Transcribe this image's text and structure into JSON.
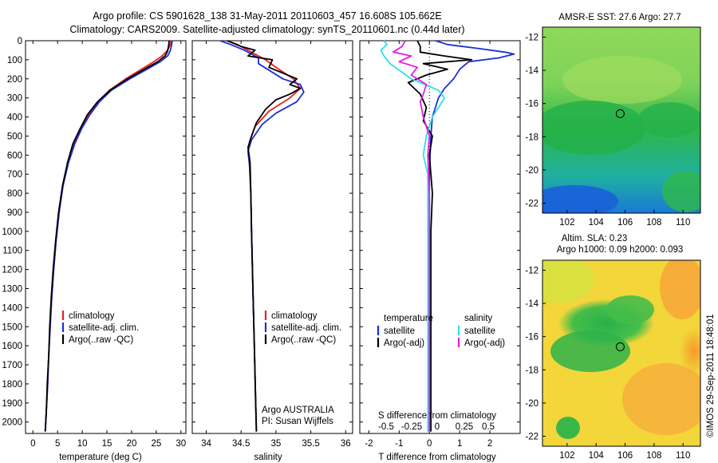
{
  "header": {
    "title_line1": "Argo profile: CS 5901628_138 31-May-2011 20110603_457 16.608S 105.662E",
    "title_line2": "Climatology: CARS2009. Satellite-adjusted climatology: synTS_20110601.nc (0.44d later)"
  },
  "colors": {
    "climatology": "#e8201c",
    "satellite": "#1a2fd6",
    "argo": "#000000",
    "sat_salinity": "#2de0ec",
    "argo_salinity": "#e020e0"
  },
  "depth_axis": {
    "ylim": [
      0,
      2060
    ],
    "ticks": [
      0,
      100,
      200,
      300,
      400,
      500,
      600,
      700,
      800,
      900,
      1000,
      1100,
      1200,
      1300,
      1400,
      1500,
      1600,
      1700,
      1800,
      1900,
      2000
    ]
  },
  "chart_data": [
    {
      "type": "line",
      "xlabel": "temperature (deg C)",
      "xlim": [
        -1.5,
        31
      ],
      "xticks": [
        0,
        5,
        10,
        15,
        20,
        25,
        30
      ],
      "legend": [
        "climatology",
        "satellite-adj. clim.",
        "Argo(..raw -QC)"
      ],
      "series": [
        {
          "name": "climatology",
          "color": "#e8201c",
          "points": [
            [
              28.0,
              0
            ],
            [
              27.8,
              25
            ],
            [
              27.1,
              55
            ],
            [
              26.2,
              80
            ],
            [
              24.5,
              110
            ],
            [
              22.0,
              150
            ],
            [
              18.8,
              200
            ],
            [
              15.5,
              260
            ],
            [
              13.2,
              320
            ],
            [
              11.3,
              390
            ],
            [
              9.8,
              460
            ],
            [
              8.4,
              540
            ],
            [
              7.1,
              640
            ],
            [
              6.1,
              760
            ],
            [
              5.3,
              900
            ],
            [
              4.7,
              1050
            ],
            [
              4.2,
              1200
            ],
            [
              3.8,
              1350
            ],
            [
              3.5,
              1500
            ],
            [
              3.2,
              1650
            ],
            [
              3.0,
              1800
            ],
            [
              2.7,
              1950
            ],
            [
              2.5,
              2050
            ]
          ]
        },
        {
          "name": "satellite-adj. clim.",
          "color": "#1a2fd6",
          "points": [
            [
              28.2,
              0
            ],
            [
              28.1,
              25
            ],
            [
              27.8,
              55
            ],
            [
              27.3,
              80
            ],
            [
              25.8,
              110
            ],
            [
              23.1,
              150
            ],
            [
              19.6,
              200
            ],
            [
              15.9,
              260
            ],
            [
              13.5,
              320
            ],
            [
              11.5,
              390
            ],
            [
              9.9,
              460
            ],
            [
              8.5,
              540
            ],
            [
              7.2,
              640
            ],
            [
              6.1,
              760
            ],
            [
              5.3,
              900
            ],
            [
              4.7,
              1050
            ],
            [
              4.2,
              1200
            ],
            [
              3.8,
              1350
            ],
            [
              3.5,
              1500
            ],
            [
              3.2,
              1650
            ],
            [
              3.0,
              1800
            ],
            [
              2.7,
              1950
            ],
            [
              2.5,
              2050
            ]
          ]
        },
        {
          "name": "Argo(..raw -QC)",
          "color": "#000000",
          "points": [
            [
              27.6,
              0
            ],
            [
              27.5,
              25
            ],
            [
              27.3,
              55
            ],
            [
              26.8,
              80
            ],
            [
              25.3,
              110
            ],
            [
              22.6,
              150
            ],
            [
              19.2,
              200
            ],
            [
              15.6,
              260
            ],
            [
              13.1,
              320
            ],
            [
              11.0,
              390
            ],
            [
              9.6,
              460
            ],
            [
              8.1,
              540
            ],
            [
              7.0,
              640
            ],
            [
              6.0,
              760
            ],
            [
              5.2,
              900
            ],
            [
              4.6,
              1050
            ],
            [
              4.1,
              1200
            ],
            [
              3.7,
              1350
            ],
            [
              3.4,
              1500
            ],
            [
              3.2,
              1650
            ],
            [
              2.9,
              1800
            ],
            [
              2.7,
              1950
            ],
            [
              2.5,
              2050
            ]
          ]
        }
      ]
    },
    {
      "type": "line",
      "xlabel": "salinity",
      "xlim": [
        33.8,
        36.1
      ],
      "xticks": [
        34,
        34.5,
        35,
        35.5,
        36
      ],
      "legend": [
        "climatology",
        "satellite-adj. clim.",
        "Argo(..raw -QC)"
      ],
      "annotation": [
        "Argo AUSTRALIA",
        "PI: Susan Wijffels"
      ],
      "series": [
        {
          "name": "climatology",
          "color": "#e8201c",
          "points": [
            [
              34.3,
              0
            ],
            [
              34.45,
              20
            ],
            [
              34.6,
              50
            ],
            [
              34.85,
              100
            ],
            [
              35.0,
              140
            ],
            [
              35.25,
              200
            ],
            [
              35.35,
              250
            ],
            [
              35.2,
              300
            ],
            [
              34.9,
              370
            ],
            [
              34.7,
              450
            ],
            [
              34.62,
              530
            ],
            [
              34.6,
              580
            ],
            [
              34.62,
              650
            ],
            [
              34.64,
              800
            ],
            [
              34.65,
              1000
            ],
            [
              34.67,
              1300
            ],
            [
              34.69,
              1600
            ],
            [
              34.71,
              1900
            ],
            [
              34.72,
              2050
            ]
          ]
        },
        {
          "name": "satellite-adj. clim.",
          "color": "#1a2fd6",
          "points": [
            [
              34.2,
              0
            ],
            [
              34.35,
              20
            ],
            [
              34.55,
              50
            ],
            [
              34.75,
              90
            ],
            [
              34.75,
              120
            ],
            [
              35.1,
              200
            ],
            [
              35.35,
              230
            ],
            [
              35.4,
              270
            ],
            [
              35.3,
              320
            ],
            [
              35.0,
              380
            ],
            [
              34.8,
              440
            ],
            [
              34.65,
              520
            ],
            [
              34.6,
              580
            ],
            [
              34.62,
              650
            ],
            [
              34.64,
              800
            ],
            [
              34.65,
              1000
            ],
            [
              34.67,
              1300
            ],
            [
              34.69,
              1600
            ],
            [
              34.71,
              1900
            ],
            [
              34.72,
              2050
            ]
          ]
        },
        {
          "name": "Argo(..raw -QC)",
          "color": "#000000",
          "points": [
            [
              34.3,
              0
            ],
            [
              34.5,
              30
            ],
            [
              34.7,
              50
            ],
            [
              34.6,
              80
            ],
            [
              34.95,
              100
            ],
            [
              34.9,
              140
            ],
            [
              35.1,
              170
            ],
            [
              35.3,
              200
            ],
            [
              35.2,
              230
            ],
            [
              35.35,
              250
            ],
            [
              35.2,
              280
            ],
            [
              35.0,
              310
            ],
            [
              34.85,
              360
            ],
            [
              34.72,
              430
            ],
            [
              34.65,
              500
            ],
            [
              34.6,
              560
            ],
            [
              34.63,
              640
            ],
            [
              34.64,
              800
            ],
            [
              34.65,
              1000
            ],
            [
              34.67,
              1300
            ],
            [
              34.69,
              1600
            ],
            [
              34.71,
              1900
            ],
            [
              34.72,
              2050
            ]
          ]
        }
      ]
    },
    {
      "type": "line",
      "xlabel": "T difference from climatology",
      "xlabel_top": "S difference from climatology",
      "xlim": [
        -2.3,
        3.0
      ],
      "xticks": [
        -2,
        -1,
        0,
        1,
        2
      ],
      "s_ticks": [
        "-0.5",
        "-0.25",
        "0",
        "0.25",
        "0.5"
      ],
      "legend_left_title": "temperature",
      "legend_left": [
        "satellite",
        "Argo(-adj)"
      ],
      "legend_right_title": "salinity",
      "legend_right": [
        "satellite",
        "Argo(-adj)"
      ],
      "series": [
        {
          "name": "T satellite",
          "color": "#1a2fd6",
          "points": [
            [
              0.2,
              0
            ],
            [
              0.6,
              20
            ],
            [
              1.6,
              40
            ],
            [
              2.5,
              60
            ],
            [
              2.8,
              70
            ],
            [
              2.3,
              90
            ],
            [
              1.3,
              110
            ],
            [
              1.0,
              150
            ],
            [
              0.8,
              200
            ],
            [
              0.5,
              250
            ],
            [
              0.3,
              300
            ],
            [
              0.1,
              400
            ],
            [
              0.05,
              500
            ],
            [
              0.0,
              700
            ],
            [
              0.0,
              1000
            ],
            [
              0.0,
              1500
            ],
            [
              0.0,
              2050
            ]
          ]
        },
        {
          "name": "T Argo(-adj)",
          "color": "#000000",
          "points": [
            [
              -0.4,
              0
            ],
            [
              -0.3,
              30
            ],
            [
              -0.3,
              60
            ],
            [
              0.5,
              80
            ],
            [
              1.4,
              100
            ],
            [
              -0.2,
              120
            ],
            [
              0.6,
              150
            ],
            [
              -0.1,
              180
            ],
            [
              -0.7,
              220
            ],
            [
              -0.3,
              280
            ],
            [
              -0.1,
              350
            ],
            [
              -0.2,
              420
            ],
            [
              0.1,
              500
            ],
            [
              0.0,
              600
            ],
            [
              0.1,
              800
            ],
            [
              0.05,
              1000
            ],
            [
              0.05,
              1500
            ],
            [
              0.05,
              2050
            ]
          ]
        },
        {
          "name": "S satellite",
          "color": "#2de0ec",
          "points": [
            [
              -1.5,
              0
            ],
            [
              -1.4,
              20
            ],
            [
              -1.6,
              50
            ],
            [
              -1.5,
              80
            ],
            [
              -1.3,
              120
            ],
            [
              -0.6,
              200
            ],
            [
              0.3,
              260
            ],
            [
              0.5,
              300
            ],
            [
              0.1,
              400
            ],
            [
              -0.1,
              500
            ],
            [
              -0.2,
              600
            ],
            [
              -0.05,
              700
            ],
            [
              -0.05,
              1000
            ],
            [
              -0.05,
              1500
            ],
            [
              -0.05,
              2050
            ]
          ]
        },
        {
          "name": "S Argo(-adj)",
          "color": "#e020e0",
          "points": [
            [
              -0.8,
              0
            ],
            [
              -0.9,
              30
            ],
            [
              -1.2,
              60
            ],
            [
              -0.6,
              80
            ],
            [
              -1.0,
              110
            ],
            [
              -0.4,
              140
            ],
            [
              -0.6,
              180
            ],
            [
              -0.1,
              230
            ],
            [
              -0.2,
              280
            ],
            [
              -0.3,
              320
            ],
            [
              -0.2,
              400
            ],
            [
              0.0,
              500
            ],
            [
              -0.05,
              600
            ],
            [
              0.0,
              800
            ],
            [
              0.0,
              2050
            ]
          ]
        }
      ]
    },
    {
      "type": "heatmap",
      "title": "AMSR-E SST: 27.6 Argo: 27.7",
      "xlim": [
        100.3,
        111.2
      ],
      "ylim": [
        -22.6,
        -11.4
      ],
      "xticks": [
        102,
        104,
        106,
        108,
        110
      ],
      "yticks": [
        -12,
        -14,
        -16,
        -18,
        -20,
        -22
      ],
      "marker": [
        105.66,
        -16.61
      ]
    },
    {
      "type": "heatmap",
      "title_line1": "Altim. SLA: 0.23",
      "title_line2": "Argo h1000: 0.09 h2000: 0.093",
      "xlim": [
        100.3,
        111.2
      ],
      "ylim": [
        -22.6,
        -11.4
      ],
      "xticks": [
        102,
        104,
        106,
        108,
        110
      ],
      "yticks": [
        -12,
        -14,
        -16,
        -18,
        -20,
        -22
      ],
      "marker": [
        105.66,
        -16.61
      ]
    }
  ],
  "side_label": "©IMOS 29-Sep-2011 18:48:01"
}
